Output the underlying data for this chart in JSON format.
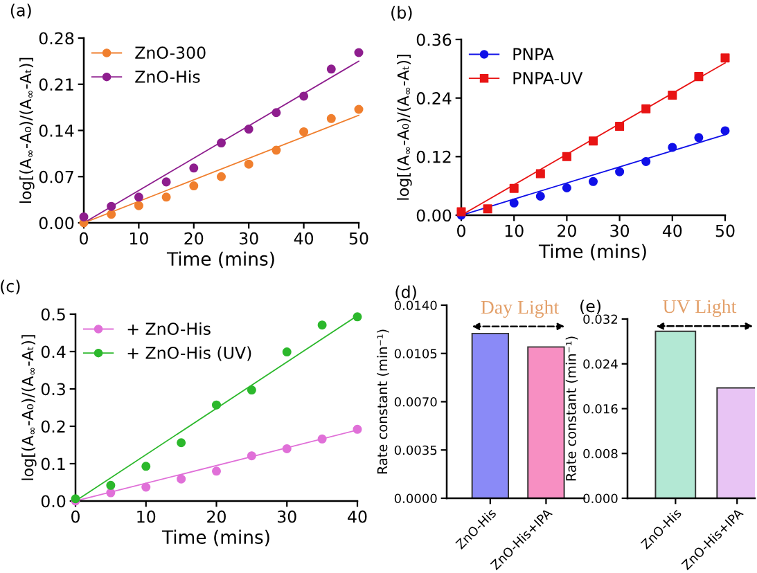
{
  "chart_data": [
    {
      "type": "scatter",
      "title": "(a)",
      "xlabel": "Time (mins)",
      "ylabel": "log[(A$_{∞}$-A₀)/(A$_{∞}$-Aₜ)]",
      "legend": "top left",
      "grid": false,
      "xlim": [
        0,
        50
      ],
      "xticks": [
        0,
        10,
        20,
        30,
        40,
        50
      ],
      "ylim": [
        0,
        0.28
      ],
      "yticks": [
        {
          "value": 0,
          "label": "0.00"
        },
        {
          "value": 0.07,
          "label": "0.07"
        },
        {
          "value": 0.14,
          "label": "0.14"
        },
        {
          "value": 0.21,
          "label": "0.21"
        },
        {
          "value": 0.28,
          "label": "0.28"
        }
      ],
      "x": [
        0,
        5,
        10,
        15,
        20,
        25,
        30,
        35,
        40,
        45,
        50
      ],
      "series": [
        {
          "name": "ZnO-300",
          "color": "#f07f2e",
          "marker": "circle",
          "values": [
            0,
            0.013,
            0.026,
            0.039,
            0.056,
            0.07,
            0.089,
            0.11,
            0.138,
            0.158,
            0.172
          ]
        },
        {
          "name": "ZnO-His",
          "color": "#8e1e8e",
          "marker": "circle",
          "values": [
            0.009,
            0.025,
            0.039,
            0.062,
            0.083,
            0.121,
            0.142,
            0.167,
            0.192,
            0.233,
            0.258
          ]
        },
        {
          "type": "line",
          "color": "#f07f2e",
          "x": [
            0,
            50
          ],
          "values": [
            0,
            0.163
          ]
        },
        {
          "type": "line",
          "color": "#8e1e8e",
          "x": [
            0,
            50
          ],
          "values": [
            0,
            0.245
          ]
        }
      ]
    },
    {
      "type": "scatter",
      "title": "(b)",
      "xlabel": "Time (mins)",
      "ylabel": "log[(A$_{∞}$-A₀)/(A$_{∞}$-Aₜ)]",
      "legend": "top left",
      "grid": false,
      "xlim": [
        0,
        50
      ],
      "xticks": [
        0,
        10,
        20,
        30,
        40,
        50
      ],
      "ylim": [
        0,
        0.36
      ],
      "yticks": [
        {
          "value": 0,
          "label": "0.00"
        },
        {
          "value": 0.12,
          "label": "0.12"
        },
        {
          "value": 0.24,
          "label": "0.24"
        },
        {
          "value": 0.36,
          "label": "0.36"
        }
      ],
      "x": [
        0,
        5,
        10,
        15,
        20,
        25,
        30,
        35,
        40,
        45,
        50
      ],
      "series": [
        {
          "name": "PNPA",
          "color": "#1010e8",
          "marker": "circle",
          "values": [
            0,
            null,
            0.025,
            0.039,
            0.056,
            0.069,
            0.089,
            0.11,
            0.139,
            0.159,
            0.173
          ]
        },
        {
          "name": "PNPA-UV",
          "color": "#e81414",
          "marker": "square",
          "values": [
            0.007,
            0.013,
            0.055,
            0.085,
            0.12,
            0.152,
            0.182,
            0.218,
            0.246,
            0.284,
            0.322
          ]
        },
        {
          "type": "line",
          "color": "#1010e8",
          "x": [
            0,
            50
          ],
          "values": [
            0,
            0.165
          ]
        },
        {
          "type": "line",
          "color": "#e81414",
          "x": [
            0,
            50
          ],
          "values": [
            0,
            0.312
          ]
        }
      ]
    },
    {
      "type": "scatter",
      "title": "(c)",
      "xlabel": "Time (mins)",
      "ylabel": "log[(A$_{∞}$-A₀)/(A$_{∞}$-Aₜ)]",
      "legend": "top left",
      "grid": false,
      "xlim": [
        0,
        40
      ],
      "xticks": [
        0,
        10,
        20,
        30,
        40
      ],
      "ylim": [
        0,
        0.5
      ],
      "yticks": [
        {
          "value": 0,
          "label": "0.0"
        },
        {
          "value": 0.1,
          "label": "0.1"
        },
        {
          "value": 0.2,
          "label": "0.2"
        },
        {
          "value": 0.3,
          "label": "0.3"
        },
        {
          "value": 0.4,
          "label": "0.4"
        },
        {
          "value": 0.5,
          "label": "0.5"
        }
      ],
      "x": [
        0,
        5,
        10,
        15,
        20,
        25,
        30,
        35,
        40
      ],
      "series": [
        {
          "name": "+ ZnO-His",
          "color": "#e070d8",
          "marker": "circle",
          "values": [
            0,
            0.022,
            0.037,
            0.059,
            0.08,
            0.121,
            0.14,
            0.166,
            0.192
          ]
        },
        {
          "name": "+ ZnO-His (UV)",
          "color": "#2cb82c",
          "marker": "circle",
          "values": [
            0.006,
            0.042,
            0.093,
            0.156,
            0.257,
            0.297,
            0.399,
            0.471,
            0.493
          ]
        },
        {
          "type": "line",
          "color": "#e070d8",
          "x": [
            0,
            40
          ],
          "values": [
            0,
            0.19
          ]
        },
        {
          "type": "line",
          "color": "#2cb82c",
          "x": [
            0,
            40
          ],
          "values": [
            0,
            0.496
          ]
        }
      ]
    },
    {
      "type": "bar",
      "title": "(d)",
      "ylabel": "Rate constant (min⁻¹)",
      "categories": [
        "ZnO-His",
        "ZnO-His+IPA"
      ],
      "values": [
        0.01195,
        0.01097
      ],
      "colors": [
        "#8a8af7",
        "#f78fc2"
      ],
      "grid": false,
      "annotations": [
        "Day Light"
      ],
      "ylim": [
        0,
        0.014
      ],
      "yticks": [
        {
          "value": 0,
          "label": "0.0000"
        },
        {
          "value": 0.0035,
          "label": "0.0035"
        },
        {
          "value": 0.007,
          "label": "0.0070"
        },
        {
          "value": 0.0105,
          "label": "0.0105"
        },
        {
          "value": 0.014,
          "label": "0.0140"
        }
      ]
    },
    {
      "type": "bar",
      "title": "(e)",
      "ylabel": "Rate constant (min⁻¹)",
      "categories": [
        "ZnO-His",
        "ZnO-His+IPA"
      ],
      "values": [
        0.0298,
        0.0197
      ],
      "colors": [
        "#b3e8d4",
        "#e8c4f4"
      ],
      "grid": false,
      "annotations": [
        "UV Light"
      ],
      "ylim": [
        0,
        0.032
      ],
      "yticks": [
        {
          "value": 0,
          "label": "0.000"
        },
        {
          "value": 0.008,
          "label": "0.008"
        },
        {
          "value": 0.016,
          "label": "0.016"
        },
        {
          "value": 0.024,
          "label": "0.024"
        },
        {
          "value": 0.032,
          "label": "0.032"
        }
      ]
    }
  ]
}
